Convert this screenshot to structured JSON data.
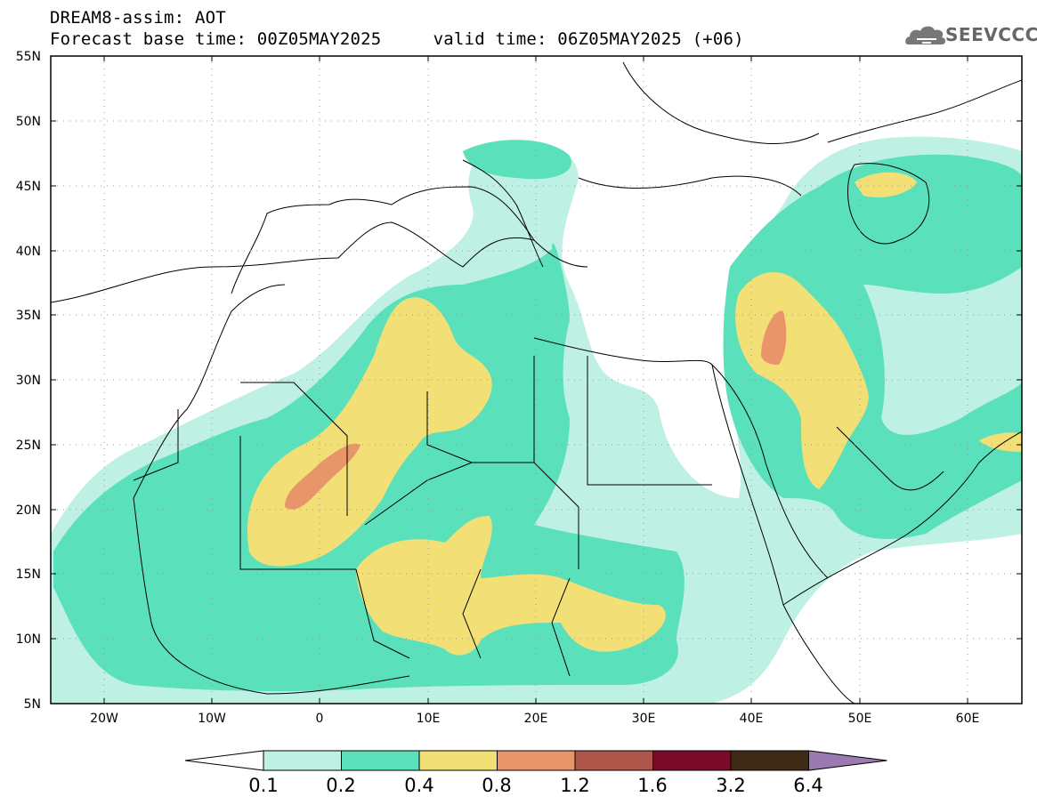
{
  "title": {
    "line1": "DREAM8-assim: AOT",
    "line2": "Forecast base time: 00Z05MAY2025     valid time: 06Z05MAY2025 (+06)"
  },
  "logo": {
    "text": "SEEVCCC",
    "icon": "cloud-icon"
  },
  "map": {
    "lon_range": [
      -25,
      65
    ],
    "lat_range": [
      5,
      55
    ],
    "projection": "equirectangular",
    "lat_ticks": [
      "55N",
      "50N",
      "45N",
      "40N",
      "35N",
      "30N",
      "25N",
      "20N",
      "15N",
      "10N",
      "5N"
    ],
    "lon_ticks": [
      "20W",
      "10W",
      "0",
      "10E",
      "20E",
      "30E",
      "40E",
      "50E",
      "60E"
    ],
    "grid": "dotted",
    "variable": "AOT"
  },
  "colorbar": {
    "labels": [
      "0.1",
      "0.2",
      "0.4",
      "0.8",
      "1.2",
      "1.6",
      "3.2",
      "6.4"
    ],
    "colors": [
      "#ffffff",
      "#bff0e4",
      "#5be0bc",
      "#f2e076",
      "#e8956a",
      "#b0564a",
      "#7a0a2a",
      "#3f2a18",
      "#9a7ab0"
    ],
    "orientation": "horizontal",
    "extend": "both"
  }
}
